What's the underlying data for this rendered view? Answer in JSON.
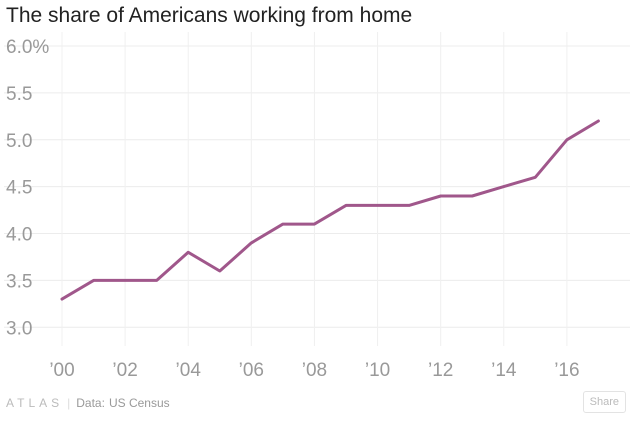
{
  "chart_data": {
    "type": "line",
    "title": "The share of Americans working from home",
    "xlabel": "",
    "ylabel": "",
    "x": [
      2000,
      2001,
      2002,
      2003,
      2004,
      2005,
      2006,
      2007,
      2008,
      2009,
      2010,
      2011,
      2012,
      2013,
      2014,
      2015,
      2016,
      2017
    ],
    "series": [
      {
        "values": [
          3.3,
          3.5,
          3.5,
          3.5,
          3.8,
          3.6,
          3.9,
          4.1,
          4.1,
          4.3,
          4.3,
          4.3,
          4.4,
          4.4,
          4.5,
          4.6,
          5.0,
          5.2
        ]
      }
    ],
    "xlim": [
      2000,
      2018
    ],
    "ylim": [
      2.8,
      6.0
    ],
    "x_ticks": [
      2000,
      2002,
      2004,
      2006,
      2008,
      2010,
      2012,
      2014,
      2016
    ],
    "x_tick_labels": [
      "’00",
      "’02",
      "’04",
      "’06",
      "’08",
      "’10",
      "’12",
      "’14",
      "’16"
    ],
    "y_ticks": [
      3.0,
      3.5,
      4.0,
      4.5,
      5.0,
      5.5,
      6.0
    ],
    "y_tick_labels": [
      "3.0",
      "3.5",
      "4.0",
      "4.5",
      "5.0",
      "5.5",
      "6.0%"
    ],
    "grid": true,
    "line_color": "#a0578b"
  },
  "footer": {
    "logo": "ATLAS",
    "separator": "|",
    "source_label": "Data:",
    "source": "US Census",
    "share_label": "Share"
  }
}
